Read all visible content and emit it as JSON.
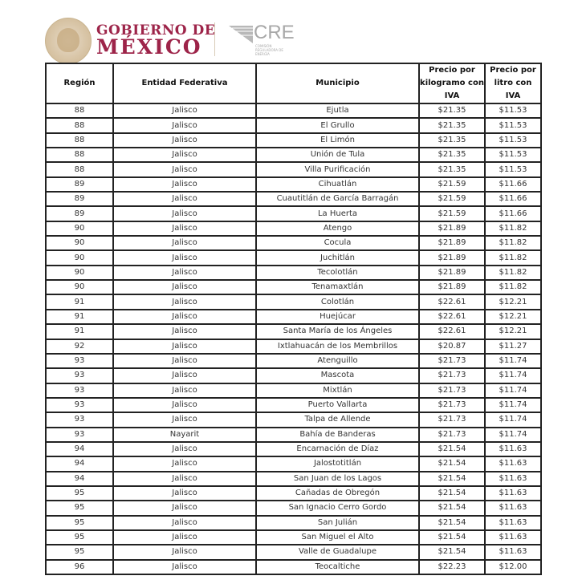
{
  "header": {
    "gov_line1": "GOBIERNO DE",
    "gov_line2": "MÉXICO",
    "agency": "CRE",
    "agency_sub": "COMISIÓN REGULADORA DE ENERGÍA",
    "brand_color": "#9d2449"
  },
  "table": {
    "columns": [
      "Región",
      "Entidad Federativa",
      "Municipio",
      "Precio por kilogramo con IVA",
      "Precio por litro con IVA"
    ],
    "rows": [
      [
        "88",
        "Jalisco",
        "Ejutla",
        "$21.35",
        "$11.53"
      ],
      [
        "88",
        "Jalisco",
        "El Grullo",
        "$21.35",
        "$11.53"
      ],
      [
        "88",
        "Jalisco",
        "El Limón",
        "$21.35",
        "$11.53"
      ],
      [
        "88",
        "Jalisco",
        "Unión de Tula",
        "$21.35",
        "$11.53"
      ],
      [
        "88",
        "Jalisco",
        "Villa Purificación",
        "$21.35",
        "$11.53"
      ],
      [
        "89",
        "Jalisco",
        "Cihuatlán",
        "$21.59",
        "$11.66"
      ],
      [
        "89",
        "Jalisco",
        "Cuautitlán de García Barragán",
        "$21.59",
        "$11.66"
      ],
      [
        "89",
        "Jalisco",
        "La Huerta",
        "$21.59",
        "$11.66"
      ],
      [
        "90",
        "Jalisco",
        "Atengo",
        "$21.89",
        "$11.82"
      ],
      [
        "90",
        "Jalisco",
        "Cocula",
        "$21.89",
        "$11.82"
      ],
      [
        "90",
        "Jalisco",
        "Juchitlán",
        "$21.89",
        "$11.82"
      ],
      [
        "90",
        "Jalisco",
        "Tecolotlán",
        "$21.89",
        "$11.82"
      ],
      [
        "90",
        "Jalisco",
        "Tenamaxtlán",
        "$21.89",
        "$11.82"
      ],
      [
        "91",
        "Jalisco",
        "Colotlán",
        "$22.61",
        "$12.21"
      ],
      [
        "91",
        "Jalisco",
        "Huejúcar",
        "$22.61",
        "$12.21"
      ],
      [
        "91",
        "Jalisco",
        "Santa María de los Ángeles",
        "$22.61",
        "$12.21"
      ],
      [
        "92",
        "Jalisco",
        "Ixtlahuacán de los Membrillos",
        "$20.87",
        "$11.27"
      ],
      [
        "93",
        "Jalisco",
        "Atenguillo",
        "$21.73",
        "$11.74"
      ],
      [
        "93",
        "Jalisco",
        "Mascota",
        "$21.73",
        "$11.74"
      ],
      [
        "93",
        "Jalisco",
        "Mixtlán",
        "$21.73",
        "$11.74"
      ],
      [
        "93",
        "Jalisco",
        "Puerto Vallarta",
        "$21.73",
        "$11.74"
      ],
      [
        "93",
        "Jalisco",
        "Talpa de Allende",
        "$21.73",
        "$11.74"
      ],
      [
        "93",
        "Nayarit",
        "Bahía de Banderas",
        "$21.73",
        "$11.74"
      ],
      [
        "94",
        "Jalisco",
        "Encarnación de Díaz",
        "$21.54",
        "$11.63"
      ],
      [
        "94",
        "Jalisco",
        "Jalostotitlán",
        "$21.54",
        "$11.63"
      ],
      [
        "94",
        "Jalisco",
        "San Juan de los Lagos",
        "$21.54",
        "$11.63"
      ],
      [
        "95",
        "Jalisco",
        "Cañadas de Obregón",
        "$21.54",
        "$11.63"
      ],
      [
        "95",
        "Jalisco",
        "San Ignacio Cerro Gordo",
        "$21.54",
        "$11.63"
      ],
      [
        "95",
        "Jalisco",
        "San Julián",
        "$21.54",
        "$11.63"
      ],
      [
        "95",
        "Jalisco",
        "San Miguel el Alto",
        "$21.54",
        "$11.63"
      ],
      [
        "95",
        "Jalisco",
        "Valle de Guadalupe",
        "$21.54",
        "$11.63"
      ],
      [
        "96",
        "Jalisco",
        "Teocaltiche",
        "$22.23",
        "$12.00"
      ]
    ]
  }
}
